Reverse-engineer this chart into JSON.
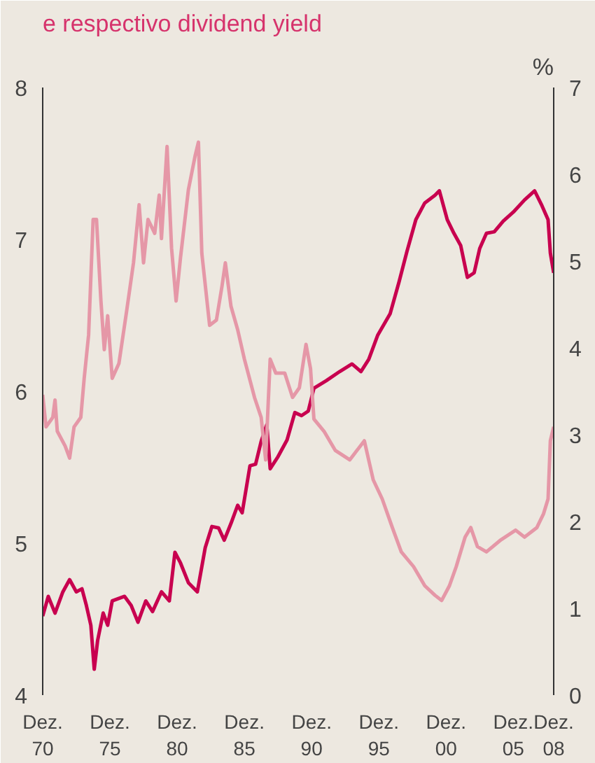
{
  "chart_data": {
    "type": "line",
    "title": "e respectivo dividend yield",
    "y2label": "%",
    "xlim": [
      "1970-12",
      "2008-12"
    ],
    "xticks": [
      {
        "value": "1970-12",
        "label": "Dez.\n70"
      },
      {
        "value": "1975-12",
        "label": "Dez.\n75"
      },
      {
        "value": "1980-12",
        "label": "Dez.\n80"
      },
      {
        "value": "1985-12",
        "label": "Dez.\n85"
      },
      {
        "value": "1990-12",
        "label": "Dez.\n90"
      },
      {
        "value": "1995-12",
        "label": "Dez.\n95"
      },
      {
        "value": "2000-12",
        "label": "Dez.\n00"
      },
      {
        "value": "2005-12",
        "label": "Dez.\n05"
      },
      {
        "value": "2008-12",
        "label": "Dez.\n08"
      }
    ],
    "ylim": [
      4,
      8
    ],
    "yticks": [
      4,
      5,
      6,
      7,
      8
    ],
    "y2lim": [
      0,
      7
    ],
    "y2ticks": [
      0,
      1,
      2,
      3,
      4,
      5,
      6,
      7
    ],
    "grid": false,
    "series": [
      {
        "color": "#c8004f",
        "x": [
          "1970-12",
          "1971-05",
          "1971-11",
          "1972-06",
          "1972-12",
          "1973-06",
          "1973-11",
          "1974-03",
          "1974-07",
          "1974-10",
          "1975-01",
          "1975-06",
          "1975-10",
          "1976-02",
          "1977-01",
          "1977-07",
          "1978-01",
          "1978-08",
          "1979-02",
          "1979-10",
          "1980-05",
          "1980-10",
          "1981-03",
          "1981-10",
          "1982-06",
          "1983-01",
          "1983-07",
          "1984-01",
          "1984-06",
          "1984-12",
          "1985-06",
          "1985-10",
          "1986-05",
          "1986-10",
          "1987-03",
          "1987-08",
          "1987-11",
          "1988-06",
          "1989-02",
          "1989-09",
          "1990-03",
          "1990-09",
          "1991-02",
          "1992-01",
          "1993-01",
          "1993-12",
          "1994-08",
          "1995-03",
          "1995-11",
          "1996-10",
          "1997-06",
          "1998-01",
          "1998-09",
          "1999-05",
          "2000-02",
          "2000-06",
          "2001-01",
          "2001-07",
          "2002-01",
          "2002-07",
          "2003-01",
          "2003-06",
          "2003-12",
          "2004-07",
          "2005-03",
          "2005-12",
          "2006-10",
          "2007-07",
          "2008-01",
          "2008-07",
          "2008-09",
          "2008-12"
        ],
        "values": [
          4.52,
          4.65,
          4.54,
          4.68,
          4.76,
          4.68,
          4.7,
          4.59,
          4.46,
          4.17,
          4.36,
          4.54,
          4.46,
          4.62,
          4.65,
          4.59,
          4.48,
          4.62,
          4.55,
          4.68,
          4.62,
          4.94,
          4.87,
          4.74,
          4.68,
          4.97,
          5.11,
          5.1,
          5.02,
          5.13,
          5.25,
          5.2,
          5.51,
          5.52,
          5.67,
          5.78,
          5.49,
          5.57,
          5.68,
          5.86,
          5.84,
          5.87,
          6.02,
          6.07,
          6.13,
          6.18,
          6.13,
          6.21,
          6.37,
          6.51,
          6.72,
          6.92,
          7.13,
          7.24,
          7.29,
          7.32,
          7.13,
          7.04,
          6.96,
          6.75,
          6.78,
          6.94,
          7.04,
          7.05,
          7.12,
          7.18,
          7.26,
          7.32,
          7.23,
          7.13,
          6.91,
          6.78
        ]
      },
      {
        "color": "#e597a7",
        "axis": "y2",
        "x": [
          "1970-12",
          "1971-03",
          "1971-09",
          "1971-11",
          "1972-01",
          "1972-08",
          "1972-12",
          "1973-04",
          "1973-10",
          "1974-01",
          "1974-05",
          "1974-09",
          "1974-12",
          "1975-04",
          "1975-07",
          "1975-10",
          "1976-02",
          "1976-08",
          "1977-03",
          "1977-09",
          "1978-02",
          "1978-06",
          "1978-10",
          "1979-04",
          "1979-08",
          "1979-10",
          "1980-03",
          "1980-07",
          "1980-11",
          "1981-03",
          "1981-10",
          "1982-04",
          "1982-07",
          "1982-10",
          "1983-05",
          "1983-11",
          "1984-04",
          "1984-07",
          "1984-12",
          "1985-06",
          "1985-12",
          "1986-09",
          "1987-03",
          "1987-07",
          "1987-11",
          "1988-04",
          "1988-12",
          "1989-07",
          "1990-01",
          "1990-07",
          "1990-11",
          "1991-02",
          "1991-11",
          "1992-09",
          "1993-10",
          "1994-11",
          "1995-07",
          "1996-03",
          "1996-12",
          "1997-08",
          "1998-07",
          "1999-05",
          "2000-02",
          "2000-08",
          "2001-03",
          "2001-09",
          "2002-05",
          "2002-10",
          "2003-04",
          "2003-12",
          "2005-01",
          "2006-02",
          "2006-10",
          "2007-09",
          "2008-03",
          "2008-07",
          "2008-09",
          "2008-12"
        ],
        "values": [
          3.46,
          3.09,
          3.2,
          3.4,
          3.04,
          2.87,
          2.73,
          3.09,
          3.2,
          3.65,
          4.15,
          5.48,
          5.48,
          4.54,
          3.98,
          4.37,
          3.65,
          3.82,
          4.43,
          4.98,
          5.65,
          4.98,
          5.48,
          5.32,
          5.76,
          5.26,
          6.32,
          5.15,
          4.54,
          5.04,
          5.82,
          6.21,
          6.37,
          5.09,
          4.26,
          4.32,
          4.71,
          4.98,
          4.48,
          4.21,
          3.87,
          3.43,
          3.2,
          2.71,
          3.87,
          3.71,
          3.71,
          3.43,
          3.54,
          4.04,
          3.76,
          3.18,
          3.04,
          2.82,
          2.71,
          2.93,
          2.48,
          2.26,
          1.93,
          1.65,
          1.48,
          1.26,
          1.15,
          1.09,
          1.26,
          1.48,
          1.82,
          1.93,
          1.71,
          1.65,
          1.79,
          1.9,
          1.82,
          1.93,
          2.09,
          2.26,
          2.93,
          3.09
        ]
      }
    ]
  }
}
